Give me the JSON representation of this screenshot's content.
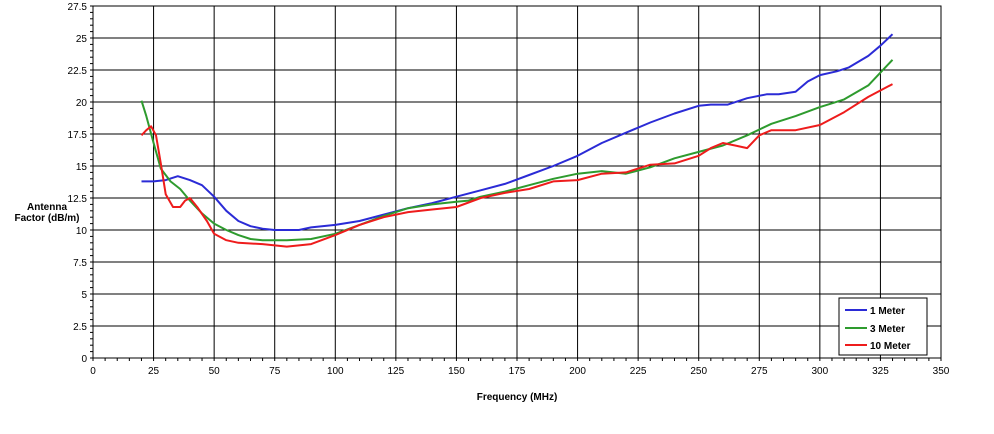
{
  "chart_data": {
    "type": "line",
    "title": "",
    "xlabel": "Frequency (MHz)",
    "ylabel": [
      "Antenna",
      "Factor (dB/m)"
    ],
    "xlim": [
      0,
      350
    ],
    "ylim": [
      0,
      27.5
    ],
    "x_ticks": [
      0,
      25,
      50,
      75,
      100,
      125,
      150,
      175,
      200,
      225,
      250,
      275,
      300,
      325,
      350
    ],
    "y_ticks": [
      0,
      2.5,
      5,
      7.5,
      10,
      12.5,
      15,
      17.5,
      20,
      22.5,
      25,
      27.5
    ],
    "grid": true,
    "legend_position": "bottom-right",
    "series": [
      {
        "name": "1 Meter",
        "color": "#2b2bd6",
        "points": [
          [
            20,
            13.8
          ],
          [
            25,
            13.8
          ],
          [
            30,
            13.9
          ],
          [
            35,
            14.2
          ],
          [
            40,
            13.9
          ],
          [
            45,
            13.5
          ],
          [
            50,
            12.6
          ],
          [
            55,
            11.5
          ],
          [
            60,
            10.7
          ],
          [
            65,
            10.3
          ],
          [
            70,
            10.1
          ],
          [
            75,
            10.0
          ],
          [
            80,
            10.0
          ],
          [
            85,
            10.0
          ],
          [
            90,
            10.2
          ],
          [
            100,
            10.4
          ],
          [
            110,
            10.7
          ],
          [
            120,
            11.2
          ],
          [
            130,
            11.7
          ],
          [
            140,
            12.1
          ],
          [
            150,
            12.6
          ],
          [
            160,
            13.1
          ],
          [
            170,
            13.6
          ],
          [
            180,
            14.3
          ],
          [
            190,
            15.0
          ],
          [
            200,
            15.8
          ],
          [
            210,
            16.8
          ],
          [
            220,
            17.6
          ],
          [
            230,
            18.4
          ],
          [
            240,
            19.1
          ],
          [
            250,
            19.7
          ],
          [
            255,
            19.8
          ],
          [
            262,
            19.8
          ],
          [
            270,
            20.3
          ],
          [
            278,
            20.6
          ],
          [
            283,
            20.6
          ],
          [
            290,
            20.8
          ],
          [
            295,
            21.6
          ],
          [
            300,
            22.1
          ],
          [
            307,
            22.4
          ],
          [
            312,
            22.7
          ],
          [
            320,
            23.6
          ],
          [
            325,
            24.4
          ],
          [
            330,
            25.3
          ]
        ]
      },
      {
        "name": "3 Meter",
        "color": "#2e9b2e",
        "points": [
          [
            20,
            20.1
          ],
          [
            22,
            18.9
          ],
          [
            25,
            16.8
          ],
          [
            28,
            14.8
          ],
          [
            32,
            13.8
          ],
          [
            36,
            13.2
          ],
          [
            40,
            12.3
          ],
          [
            45,
            11.3
          ],
          [
            50,
            10.5
          ],
          [
            55,
            10.0
          ],
          [
            60,
            9.6
          ],
          [
            65,
            9.3
          ],
          [
            70,
            9.2
          ],
          [
            80,
            9.2
          ],
          [
            90,
            9.3
          ],
          [
            100,
            9.7
          ],
          [
            110,
            10.4
          ],
          [
            120,
            11.1
          ],
          [
            130,
            11.7
          ],
          [
            140,
            12.0
          ],
          [
            150,
            12.2
          ],
          [
            155,
            12.3
          ],
          [
            160,
            12.6
          ],
          [
            170,
            13.0
          ],
          [
            180,
            13.5
          ],
          [
            190,
            14.0
          ],
          [
            200,
            14.4
          ],
          [
            210,
            14.6
          ],
          [
            220,
            14.4
          ],
          [
            230,
            14.9
          ],
          [
            240,
            15.6
          ],
          [
            250,
            16.1
          ],
          [
            260,
            16.6
          ],
          [
            270,
            17.4
          ],
          [
            280,
            18.3
          ],
          [
            290,
            18.9
          ],
          [
            300,
            19.6
          ],
          [
            305,
            19.9
          ],
          [
            310,
            20.2
          ],
          [
            320,
            21.3
          ],
          [
            330,
            23.3
          ]
        ]
      },
      {
        "name": "10 Meter",
        "color": "#ee1c1c",
        "points": [
          [
            20,
            17.4
          ],
          [
            22,
            17.8
          ],
          [
            24,
            18.1
          ],
          [
            26,
            17.4
          ],
          [
            28,
            15.2
          ],
          [
            30,
            12.8
          ],
          [
            33,
            11.8
          ],
          [
            36,
            11.8
          ],
          [
            38,
            12.3
          ],
          [
            40,
            12.5
          ],
          [
            43,
            11.8
          ],
          [
            47,
            10.7
          ],
          [
            50,
            9.7
          ],
          [
            55,
            9.2
          ],
          [
            60,
            9.0
          ],
          [
            70,
            8.9
          ],
          [
            80,
            8.7
          ],
          [
            90,
            8.9
          ],
          [
            100,
            9.6
          ],
          [
            110,
            10.4
          ],
          [
            120,
            11.0
          ],
          [
            130,
            11.4
          ],
          [
            140,
            11.6
          ],
          [
            150,
            11.8
          ],
          [
            160,
            12.5
          ],
          [
            170,
            12.9
          ],
          [
            180,
            13.2
          ],
          [
            190,
            13.8
          ],
          [
            200,
            13.9
          ],
          [
            210,
            14.4
          ],
          [
            220,
            14.5
          ],
          [
            230,
            15.1
          ],
          [
            240,
            15.2
          ],
          [
            250,
            15.8
          ],
          [
            255,
            16.4
          ],
          [
            260,
            16.8
          ],
          [
            265,
            16.6
          ],
          [
            270,
            16.4
          ],
          [
            275,
            17.4
          ],
          [
            280,
            17.8
          ],
          [
            290,
            17.8
          ],
          [
            300,
            18.2
          ],
          [
            310,
            19.2
          ],
          [
            320,
            20.4
          ],
          [
            330,
            21.4
          ]
        ]
      }
    ]
  }
}
